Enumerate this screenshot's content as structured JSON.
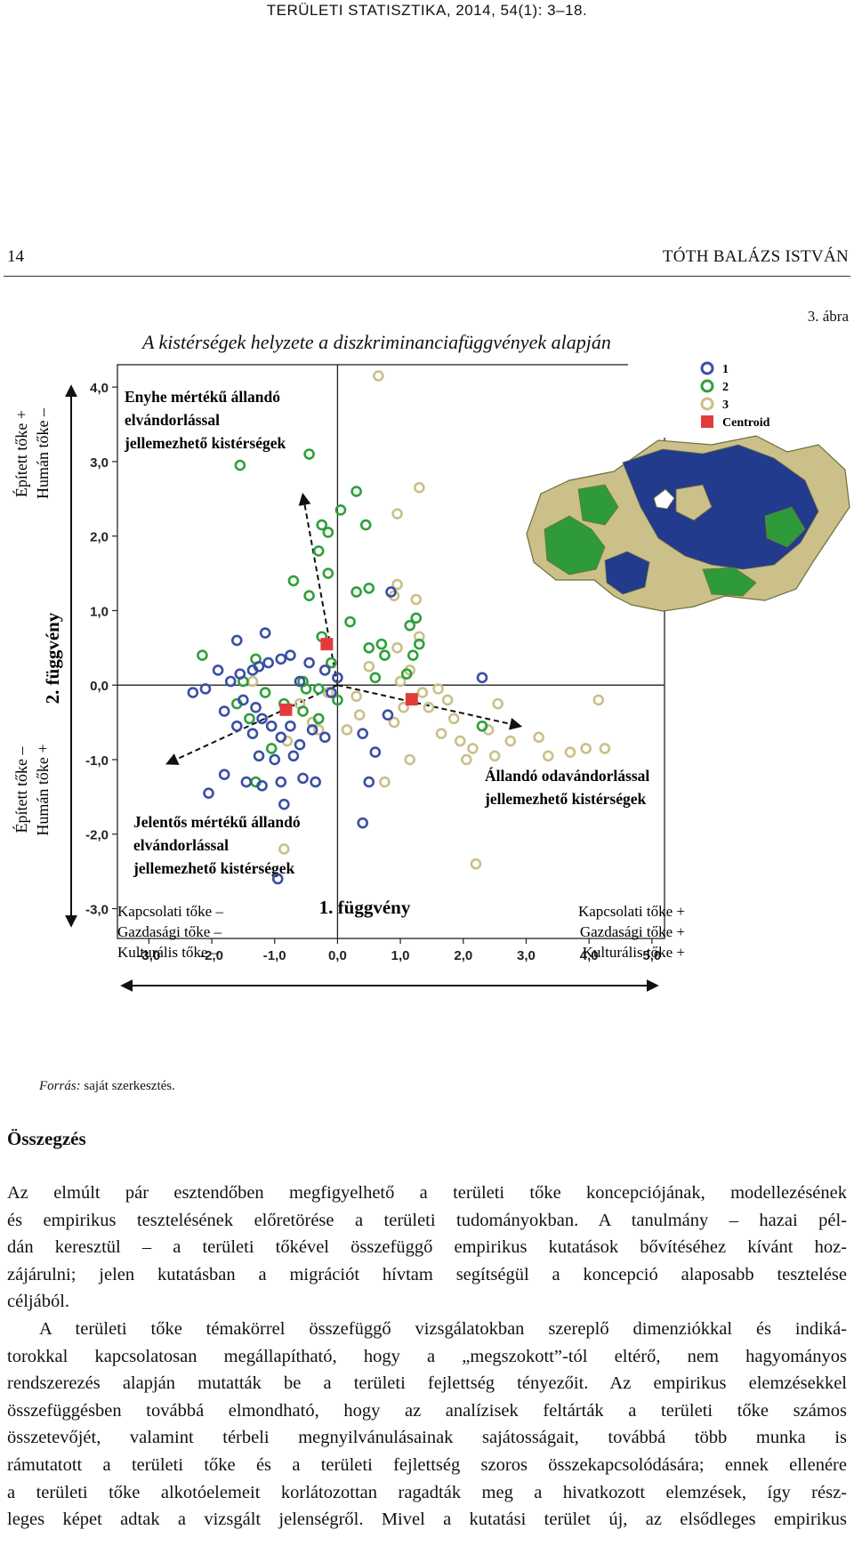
{
  "header": {
    "running_head": "TERÜLETI STATISZTIKA, 2014, 54(1): 3–18.",
    "page_number": "14",
    "author": "TÓTH BALÁZS ISTVÁN"
  },
  "figure": {
    "label": "3. ábra",
    "title": "A kistérségek helyzete a diszkriminanciafüggvények alapján",
    "source_prefix": "Forrás:",
    "source_text": "saját szerkesztés."
  },
  "chart_data": {
    "type": "scatter",
    "xlabel": "1. függvény",
    "ylabel": "2. függvény",
    "xlim": [
      -3.5,
      5.2
    ],
    "ylim": [
      -3.4,
      4.3
    ],
    "xticks": [
      "-3,0",
      "-2,0",
      "-1,0",
      "0,0",
      "1,0",
      "2,0",
      "3,0",
      "4,0",
      "5,0"
    ],
    "yticks": [
      "4,0",
      "3,0",
      "2,0",
      "1,0",
      "0,0",
      "-1,0",
      "-2,0",
      "-3,0"
    ],
    "grid": false,
    "legend_position": "top-right",
    "legend": [
      "1",
      "2",
      "3",
      "Centroid"
    ],
    "colors": {
      "1": "#3a4fa3",
      "2": "#2ea03a",
      "3": "#c9c08a",
      "Centroid": "#e33b3b"
    },
    "x_axis_side_labels": {
      "left": [
        "Kapcsolati tőke –",
        "Gazdasági tőke –",
        "Kulturális tőke –"
      ],
      "right": [
        "Kapcsolati tőke +",
        "Gazdasági tőke +",
        "Kulturális tőke +"
      ]
    },
    "y_axis_side_labels": {
      "top": [
        "Épített tőke +",
        "Humán tőke –"
      ],
      "bottom": [
        "Épített tőke –",
        "Humán tőke +"
      ]
    },
    "annotations": [
      {
        "lines": [
          "Enyhe mértékű állandó",
          "elvándorlással",
          "jellemezhető kistérségek"
        ],
        "position": "upper-left"
      },
      {
        "lines": [
          "Jelentős mértékű állandó",
          "elvándorlással",
          "jellemezhető kistérségek"
        ],
        "position": "lower-left"
      },
      {
        "lines": [
          "Állandó odavándorlással",
          "jellemezhető kistérségek"
        ],
        "position": "lower-right"
      }
    ],
    "map_legend": [
      "1",
      "2",
      "3"
    ],
    "centroids": [
      {
        "group": "1",
        "x": -0.82,
        "y": -0.33
      },
      {
        "group": "2",
        "x": -0.17,
        "y": 0.55
      },
      {
        "group": "3",
        "x": 1.18,
        "y": -0.19
      }
    ],
    "series": [
      {
        "name": "1",
        "points": [
          [
            -2.3,
            -0.1
          ],
          [
            -2.1,
            -0.05
          ],
          [
            -1.7,
            0.05
          ],
          [
            -1.55,
            0.15
          ],
          [
            -1.35,
            0.2
          ],
          [
            -1.25,
            0.25
          ],
          [
            -1.1,
            0.3
          ],
          [
            -0.9,
            0.35
          ],
          [
            -0.75,
            0.4
          ],
          [
            -1.5,
            -0.2
          ],
          [
            -1.3,
            -0.3
          ],
          [
            -1.2,
            -0.45
          ],
          [
            -1.6,
            -0.55
          ],
          [
            -1.35,
            -0.65
          ],
          [
            -1.05,
            -0.55
          ],
          [
            -0.9,
            -0.7
          ],
          [
            -1.25,
            -0.95
          ],
          [
            -1.0,
            -1.0
          ],
          [
            -0.7,
            -0.95
          ],
          [
            -1.45,
            -1.3
          ],
          [
            -1.2,
            -1.35
          ],
          [
            -0.9,
            -1.3
          ],
          [
            -0.55,
            -1.25
          ],
          [
            -0.35,
            -1.3
          ],
          [
            -2.05,
            -1.45
          ],
          [
            -1.8,
            -1.2
          ],
          [
            -0.75,
            -0.55
          ],
          [
            -0.6,
            -0.8
          ],
          [
            -0.4,
            -0.6
          ],
          [
            -0.2,
            -0.7
          ],
          [
            -0.85,
            -1.6
          ],
          [
            -0.45,
            0.3
          ],
          [
            -0.2,
            0.2
          ],
          [
            -0.1,
            -0.1
          ],
          [
            0.4,
            -0.65
          ],
          [
            0.6,
            -0.9
          ],
          [
            0.5,
            -1.3
          ],
          [
            0.4,
            -1.85
          ],
          [
            0.8,
            -0.4
          ],
          [
            -1.6,
            0.6
          ],
          [
            -1.15,
            0.7
          ],
          [
            -1.9,
            0.2
          ],
          [
            -0.95,
            -2.6
          ],
          [
            0.85,
            1.25
          ],
          [
            2.3,
            0.1
          ],
          [
            0.0,
            0.1
          ],
          [
            -0.6,
            0.05
          ],
          [
            -1.8,
            -0.35
          ]
        ]
      },
      {
        "name": "2",
        "points": [
          [
            -1.55,
            2.95
          ],
          [
            -0.45,
            3.1
          ],
          [
            -0.7,
            1.4
          ],
          [
            -0.45,
            1.2
          ],
          [
            -0.15,
            1.5
          ],
          [
            0.3,
            1.25
          ],
          [
            0.5,
            1.3
          ],
          [
            -0.3,
            1.8
          ],
          [
            -0.15,
            2.05
          ],
          [
            -0.25,
            2.15
          ],
          [
            0.05,
            2.35
          ],
          [
            0.3,
            2.6
          ],
          [
            0.45,
            2.15
          ],
          [
            -1.3,
            0.35
          ],
          [
            -1.5,
            0.05
          ],
          [
            -1.15,
            -0.1
          ],
          [
            -0.85,
            -0.25
          ],
          [
            -0.55,
            0.05
          ],
          [
            -0.3,
            -0.05
          ],
          [
            -0.1,
            0.3
          ],
          [
            0.5,
            0.5
          ],
          [
            0.7,
            0.55
          ],
          [
            1.25,
            0.9
          ],
          [
            1.15,
            0.8
          ],
          [
            1.3,
            0.55
          ],
          [
            1.2,
            0.4
          ],
          [
            -1.6,
            -0.25
          ],
          [
            -1.4,
            -0.45
          ],
          [
            -0.55,
            -0.35
          ],
          [
            -0.3,
            -0.45
          ],
          [
            0.0,
            -0.2
          ],
          [
            -1.05,
            -0.85
          ],
          [
            -1.3,
            -1.3
          ],
          [
            -0.5,
            -0.05
          ],
          [
            -0.25,
            0.65
          ],
          [
            0.2,
            0.85
          ],
          [
            0.75,
            0.4
          ],
          [
            -2.15,
            0.4
          ],
          [
            2.3,
            -0.55
          ],
          [
            1.1,
            0.15
          ],
          [
            0.6,
            0.1
          ]
        ]
      },
      {
        "name": "3",
        "points": [
          [
            0.65,
            4.15
          ],
          [
            1.3,
            2.65
          ],
          [
            0.95,
            2.3
          ],
          [
            0.95,
            1.35
          ],
          [
            1.25,
            1.15
          ],
          [
            0.9,
            1.2
          ],
          [
            1.3,
            0.65
          ],
          [
            0.95,
            0.5
          ],
          [
            1.15,
            0.2
          ],
          [
            0.5,
            0.25
          ],
          [
            0.3,
            -0.15
          ],
          [
            0.35,
            -0.4
          ],
          [
            0.9,
            -0.5
          ],
          [
            1.05,
            -0.3
          ],
          [
            1.35,
            -0.1
          ],
          [
            1.45,
            -0.3
          ],
          [
            1.75,
            -0.2
          ],
          [
            1.85,
            -0.45
          ],
          [
            1.65,
            -0.65
          ],
          [
            1.95,
            -0.75
          ],
          [
            2.15,
            -0.85
          ],
          [
            2.05,
            -1.0
          ],
          [
            2.4,
            -0.6
          ],
          [
            2.5,
            -0.95
          ],
          [
            2.75,
            -0.75
          ],
          [
            3.2,
            -0.7
          ],
          [
            3.35,
            -0.95
          ],
          [
            3.7,
            -0.9
          ],
          [
            3.95,
            -0.85
          ],
          [
            4.25,
            -0.85
          ],
          [
            4.15,
            -0.2
          ],
          [
            2.2,
            -2.4
          ],
          [
            1.15,
            -1.0
          ],
          [
            0.75,
            -1.3
          ],
          [
            0.15,
            -0.6
          ],
          [
            -0.3,
            -0.6
          ],
          [
            -0.8,
            -0.75
          ],
          [
            -0.85,
            -2.2
          ],
          [
            -0.4,
            -0.5
          ],
          [
            -0.15,
            -0.1
          ],
          [
            -0.6,
            -0.25
          ],
          [
            -1.35,
            0.05
          ],
          [
            1.0,
            0.05
          ],
          [
            1.6,
            -0.05
          ],
          [
            2.55,
            -0.25
          ]
        ]
      }
    ]
  },
  "section_heading": "Összegzés",
  "body_lines": [
    "Az elmúlt pár esztendőben megfigyelhető a területi tőke koncepciójának, modellezésének",
    "és empirikus tesztelésének előretörése a területi tudományokban. A tanulmány – hazai pél-",
    "dán keresztül – a területi tőkével összefüggő empirikus kutatások bővítéséhez kívánt hoz-",
    "zájárulni; jelen kutatásban a migrációt hívtam segítségül a koncepció alaposabb tesztelése",
    "céljából.",
    "A területi tőke témakörrel összefüggő vizsgálatokban szereplő dimenziókkal és indiká-",
    "torokkal kapcsolatosan megállapítható, hogy a „megszokott”-tól eltérő, nem hagyományos",
    "rendszerezés alapján mutatták be a területi fejlettség tényezőit. Az empirikus elemzésekkel",
    "összefüggésben továbbá elmondható, hogy az analízisek feltárták a területi tőke számos",
    "összetevőjét, valamint térbeli megnyilvánulásainak sajátosságait, továbbá több munka is",
    "rámutatott a területi tőke és a területi fejlettség szoros összekapcsolódására; ennek ellenére",
    "a területi tőke alkotóelemeit korlátozottan ragadták meg a hivatkozott elemzések, így rész-",
    "leges képet adtak a vizsgált jelenségről. Mivel a kutatási terület új, az elsődleges empirikus"
  ]
}
